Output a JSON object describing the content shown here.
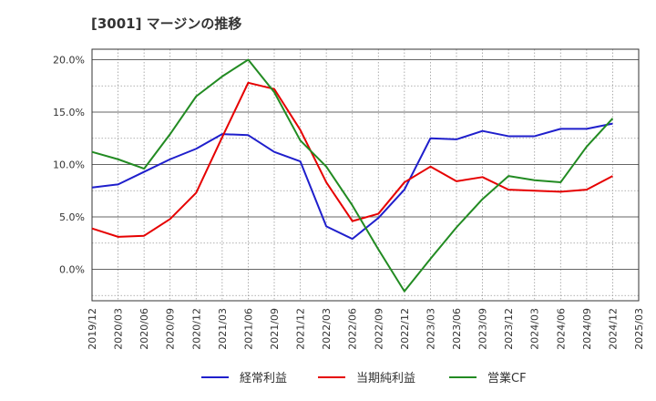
{
  "chart_data": {
    "type": "line",
    "title": "[3001]  マージンの推移",
    "xlabel": "",
    "ylabel": "",
    "ylim": [
      -3,
      21
    ],
    "yticks": [
      0,
      5,
      10,
      15,
      20
    ],
    "ytick_labels": [
      "0.0%",
      "5.0%",
      "10.0%",
      "15.0%",
      "20.0%"
    ],
    "grid": true,
    "legend_position": "bottom",
    "categories": [
      "2019/12",
      "2020/03",
      "2020/06",
      "2020/09",
      "2020/12",
      "2021/03",
      "2021/06",
      "2021/09",
      "2021/12",
      "2022/03",
      "2022/06",
      "2022/09",
      "2022/12",
      "2023/03",
      "2023/06",
      "2023/09",
      "2023/12",
      "2024/03",
      "2024/06",
      "2024/09",
      "2024/12",
      "2025/03"
    ],
    "series": [
      {
        "name": "経常利益",
        "color": "#1f1fcc",
        "values": [
          7.8,
          8.1,
          9.3,
          10.5,
          11.5,
          12.9,
          12.8,
          11.2,
          10.3,
          4.1,
          2.9,
          4.9,
          7.6,
          12.5,
          12.4,
          13.2,
          12.7,
          12.7,
          13.4,
          13.4,
          13.9,
          null
        ]
      },
      {
        "name": "当期純利益",
        "color": "#e60000",
        "values": [
          3.9,
          3.1,
          3.2,
          4.8,
          7.3,
          12.6,
          17.8,
          17.2,
          13.3,
          8.3,
          4.6,
          5.3,
          8.3,
          9.8,
          8.4,
          8.8,
          7.6,
          7.5,
          7.4,
          7.6,
          8.9,
          null
        ]
      },
      {
        "name": "営業CF",
        "color": "#228b22",
        "values": [
          11.2,
          10.5,
          9.6,
          12.9,
          16.5,
          18.4,
          20.0,
          16.9,
          12.3,
          9.8,
          6.1,
          1.9,
          -2.1,
          1.0,
          4.0,
          6.7,
          8.9,
          8.5,
          8.3,
          11.7,
          14.4,
          null
        ]
      }
    ]
  }
}
